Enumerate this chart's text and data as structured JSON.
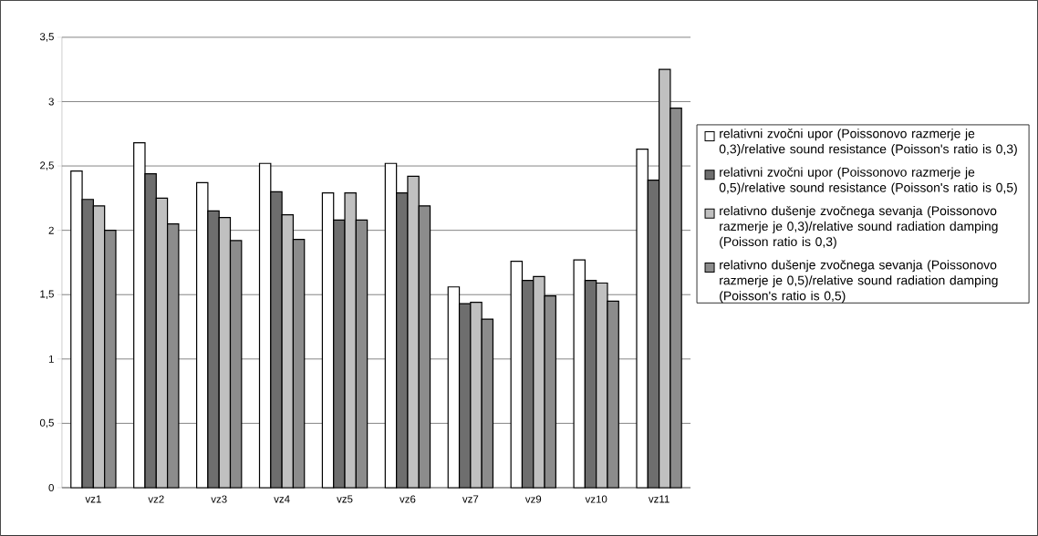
{
  "chart_data": {
    "type": "bar",
    "categories": [
      "vz1",
      "vz2",
      "vz3",
      "vz4",
      "vz5",
      "vz6",
      "vz7",
      "vz9",
      "vz10",
      "vz11"
    ],
    "series": [
      {
        "name": "relativni zvočni upor (Poissonovo razmerje je 0,3)/relative sound resistance (Poisson's ratio is 0,3)",
        "color": "#ffffff",
        "values": [
          2.46,
          2.68,
          2.37,
          2.52,
          2.29,
          2.52,
          1.56,
          1.76,
          1.77,
          2.63
        ]
      },
      {
        "name": "relativni zvočni upor (Poissonovo razmerje je 0,5)/relative sound resistance (Poisson's ratio is 0,5)",
        "color": "#6e6e6e",
        "values": [
          2.24,
          2.44,
          2.15,
          2.3,
          2.08,
          2.29,
          1.43,
          1.61,
          1.61,
          2.39
        ]
      },
      {
        "name": "relativno dušenje zvočnega sevanja (Poissonovo razmerje je 0,3)/relative sound radiation damping (Poisson ratio is 0,3)",
        "color": "#c0c0c0",
        "values": [
          2.19,
          2.25,
          2.1,
          2.12,
          2.29,
          2.42,
          1.44,
          1.64,
          1.59,
          3.25
        ]
      },
      {
        "name": "relativno dušenje zvočnega sevanja (Poissonovo razmerje je 0,5)/relative sound radiation damping (Poisson's ratio is 0,5)",
        "color": "#8c8c8c",
        "values": [
          2.0,
          2.05,
          1.92,
          1.93,
          2.08,
          2.19,
          1.31,
          1.49,
          1.45,
          2.95
        ]
      }
    ],
    "ylim": [
      0,
      3.5
    ],
    "yticks": [
      {
        "value": 0,
        "label": "0"
      },
      {
        "value": 0.5,
        "label": "0,5"
      },
      {
        "value": 1,
        "label": "1"
      },
      {
        "value": 1.5,
        "label": "1,5"
      },
      {
        "value": 2,
        "label": "2"
      },
      {
        "value": 2.5,
        "label": "2,5"
      },
      {
        "value": 3,
        "label": "3"
      },
      {
        "value": 3.5,
        "label": "3,5"
      }
    ],
    "grid": "y",
    "legend": "right"
  }
}
